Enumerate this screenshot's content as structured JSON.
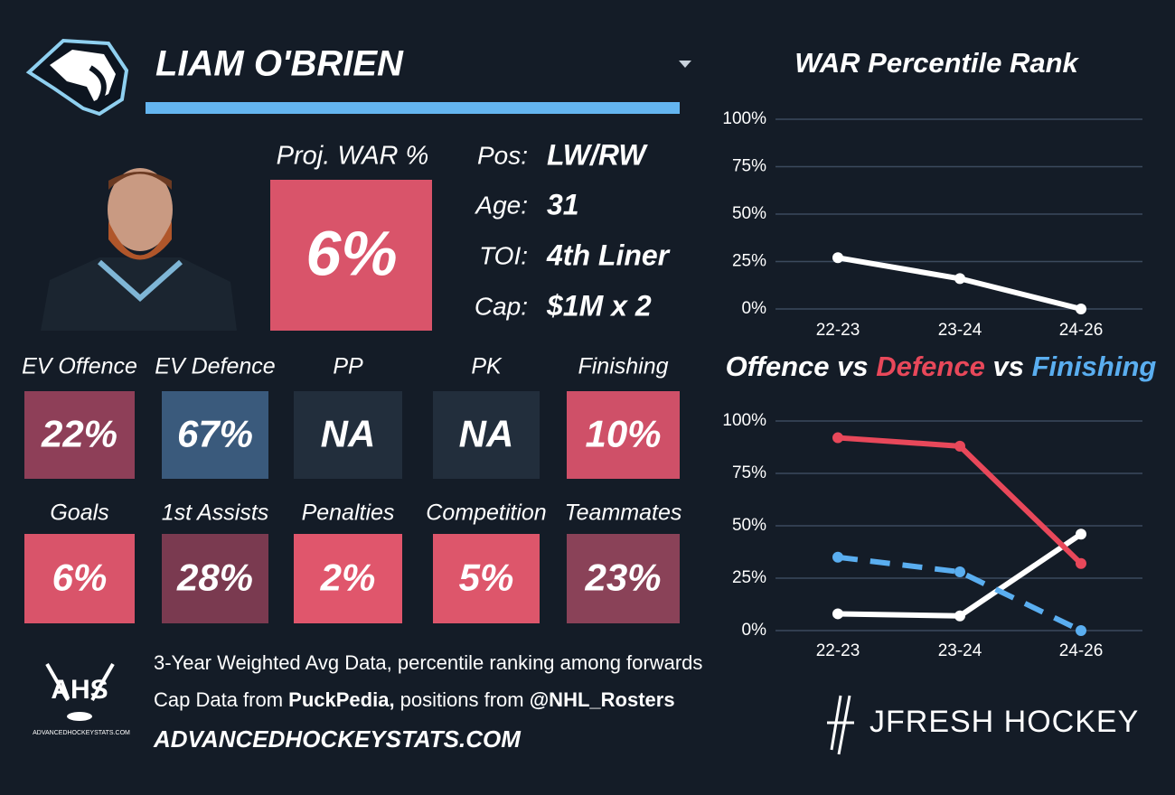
{
  "player": {
    "name": "LIAM O'BRIEN",
    "proj_label": "Proj. WAR %",
    "proj_value": "6%",
    "proj_color": "#d9546a",
    "info": [
      {
        "label": "Pos:",
        "value": "LW/RW"
      },
      {
        "label": "Age:",
        "value": "31"
      },
      {
        "label": "TOI:",
        "value": "4th Liner"
      },
      {
        "label": "Cap:",
        "value": "$1M x 2"
      }
    ]
  },
  "tiles": [
    {
      "label": "EV Offence",
      "value": "22%",
      "color": "#8e3f58"
    },
    {
      "label": "EV Defence",
      "value": "67%",
      "color": "#3a5a7c"
    },
    {
      "label": "PP",
      "value": "NA",
      "color": "#222e3c"
    },
    {
      "label": "PK",
      "value": "NA",
      "color": "#222e3c"
    },
    {
      "label": "Finishing",
      "value": "10%",
      "color": "#cf5068"
    },
    {
      "label": "Goals",
      "value": "6%",
      "color": "#d9546a"
    },
    {
      "label": "1st Assists",
      "value": "28%",
      "color": "#7a3a50"
    },
    {
      "label": "Penalties",
      "value": "2%",
      "color": "#e0566c"
    },
    {
      "label": "Competition",
      "value": "5%",
      "color": "#dd566b"
    },
    {
      "label": "Teammates",
      "value": "23%",
      "color": "#8a4258"
    }
  ],
  "footer": {
    "line1": "3-Year Weighted Avg Data, percentile ranking among forwards",
    "line2": [
      {
        "text": "Cap Data from ",
        "bold": false
      },
      {
        "text": "PuckPedia,",
        "bold": true
      },
      {
        "text": " positions from ",
        "bold": false
      },
      {
        "text": "@NHL_Rosters",
        "bold": true
      }
    ],
    "site": "ADVANCEDHOCKEYSTATS.COM",
    "ahs_logo": "AHS",
    "ahs_site": "ADVANCEDHOCKEYSTATS.COM",
    "brand": "JFRESH HOCKEY"
  },
  "chart_data": [
    {
      "type": "line",
      "title": "WAR Percentile Rank",
      "categories": [
        "22-23",
        "23-24",
        "24-26"
      ],
      "series": [
        {
          "color": "#ffffff",
          "dashed": false,
          "values": [
            27,
            16,
            0
          ]
        }
      ],
      "ylim": [
        0,
        100
      ],
      "yticks": [
        {
          "value": 0,
          "label": "0%"
        },
        {
          "value": 25,
          "label": "25%"
        },
        {
          "value": 50,
          "label": "50%"
        },
        {
          "value": 75,
          "label": "75%"
        },
        {
          "value": 100,
          "label": "100%"
        }
      ],
      "grid": true
    },
    {
      "type": "line",
      "title_joiner": " vs ",
      "categories": [
        "22-23",
        "23-24",
        "24-26"
      ],
      "series": [
        {
          "name": "Offence",
          "color": "#ffffff",
          "dashed": false,
          "values": [
            8,
            7,
            46
          ]
        },
        {
          "name": "Defence",
          "color": "#e8485a",
          "dashed": false,
          "values": [
            92,
            88,
            32
          ]
        },
        {
          "name": "Finishing",
          "color": "#5aaef0",
          "dashed": true,
          "values": [
            35,
            28,
            0
          ]
        }
      ],
      "ylim": [
        0,
        100
      ],
      "yticks": [
        {
          "value": 0,
          "label": "0%"
        },
        {
          "value": 25,
          "label": "25%"
        },
        {
          "value": 50,
          "label": "50%"
        },
        {
          "value": 75,
          "label": "75%"
        },
        {
          "value": 100,
          "label": "100%"
        }
      ],
      "grid": true
    }
  ]
}
